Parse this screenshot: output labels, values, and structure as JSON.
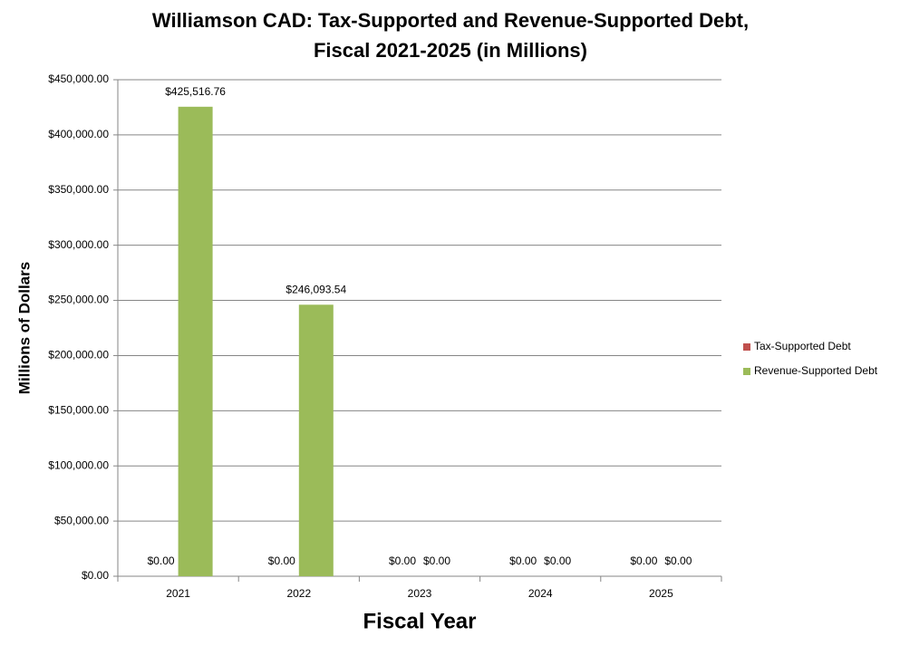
{
  "chart_data": {
    "type": "bar",
    "title": [
      "Williamson CAD: Tax-Supported and Revenue-Supported Debt,",
      "Fiscal 2021-2025 (in Millions)"
    ],
    "x_label": "Fiscal Year",
    "y_label": "Millions of Dollars",
    "categories": [
      "2021",
      "2022",
      "2023",
      "2024",
      "2025"
    ],
    "series": [
      {
        "name": "Tax-Supported Debt",
        "color": "#c0504d",
        "values": [
          0,
          0,
          0,
          0,
          0
        ],
        "value_labels": [
          "$0.00",
          "$0.00",
          "$0.00",
          "$0.00",
          "$0.00"
        ]
      },
      {
        "name": "Revenue-Supported Debt",
        "color": "#9bbb59",
        "values": [
          425516.76,
          246093.54,
          0,
          0,
          0
        ],
        "value_labels": [
          "$425,516.76",
          "$246,093.54",
          "$0.00",
          "$0.00",
          "$0.00"
        ]
      }
    ],
    "ylim": [
      0,
      450000
    ],
    "yticks": [
      {
        "value": 0,
        "label": "$0.00"
      },
      {
        "value": 50000,
        "label": "$50,000.00"
      },
      {
        "value": 100000,
        "label": "$100,000.00"
      },
      {
        "value": 150000,
        "label": "$150,000.00"
      },
      {
        "value": 200000,
        "label": "$200,000.00"
      },
      {
        "value": 250000,
        "label": "$250,000.00"
      },
      {
        "value": 300000,
        "label": "$300,000.00"
      },
      {
        "value": 350000,
        "label": "$350,000.00"
      },
      {
        "value": 400000,
        "label": "$400,000.00"
      },
      {
        "value": 450000,
        "label": "$450,000.00"
      }
    ],
    "grid": true,
    "legend": "right"
  }
}
